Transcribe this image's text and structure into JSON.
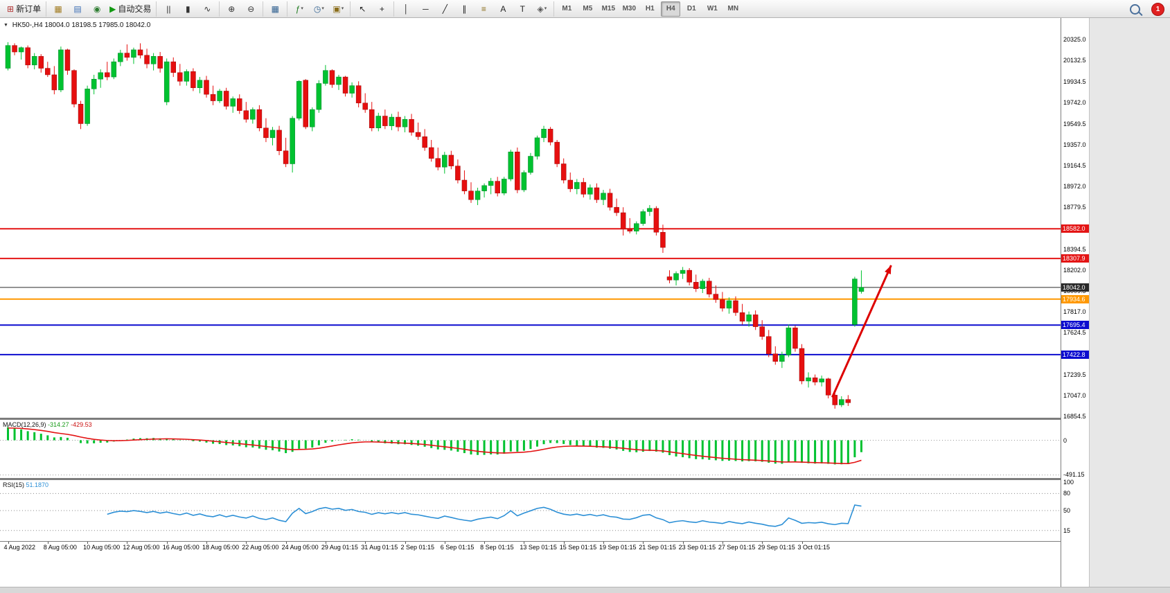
{
  "app": {
    "notification_count": "1",
    "symbol_dropdown_glyph": "▼"
  },
  "toolbar": {
    "groups": [
      [
        {
          "name": "new-order-button",
          "glyph": "⊞",
          "color": "#b03030",
          "label": "新订单"
        }
      ],
      [
        {
          "name": "new-chart-button",
          "glyph": "▦",
          "color": "#a07a1e"
        },
        {
          "name": "profiles-button",
          "glyph": "▤",
          "color": "#3c6eb4"
        },
        {
          "name": "data-window-button",
          "glyph": "◉",
          "color": "#2e7d32"
        },
        {
          "name": "auto-trading-button",
          "glyph": "▶",
          "color": "#119911",
          "label": "自动交易"
        }
      ],
      [
        {
          "name": "bar-chart-button",
          "glyph": "||",
          "color": "#333"
        },
        {
          "name": "candlestick-chart-button",
          "glyph": "▮",
          "color": "#333"
        },
        {
          "name": "line-chart-button",
          "glyph": "∿",
          "color": "#333"
        }
      ],
      [
        {
          "name": "zoom-in-button",
          "glyph": "⊕",
          "color": "#333"
        },
        {
          "name": "zoom-out-button",
          "glyph": "⊖",
          "color": "#333"
        }
      ],
      [
        {
          "name": "tile-windows-button",
          "glyph": "▦",
          "color": "#2e5f8f"
        }
      ],
      [
        {
          "name": "indicators-button",
          "glyph": "ƒ",
          "color": "#1d7a1d",
          "caret": true
        },
        {
          "name": "periods-button",
          "glyph": "◷",
          "color": "#2e5f8f",
          "caret": true
        },
        {
          "name": "templates-button",
          "glyph": "▣",
          "color": "#8a6d1a",
          "caret": true
        }
      ],
      [
        {
          "name": "cursor-button",
          "glyph": "↖",
          "color": "#222"
        },
        {
          "name": "crosshair-button",
          "glyph": "+",
          "color": "#222"
        }
      ],
      [
        {
          "name": "vertical-line-button",
          "glyph": "│",
          "color": "#222"
        },
        {
          "name": "horizontal-line-button",
          "glyph": "─",
          "color": "#222"
        },
        {
          "name": "trendline-button",
          "glyph": "╱",
          "color": "#222"
        },
        {
          "name": "equidistant-channel-button",
          "glyph": "∥",
          "color": "#222"
        },
        {
          "name": "fibonacci-button",
          "glyph": "≡",
          "color": "#8a6d1a"
        },
        {
          "name": "text-button",
          "glyph": "A",
          "color": "#222"
        },
        {
          "name": "text-label-button",
          "glyph": "T",
          "color": "#222"
        },
        {
          "name": "shapes-button",
          "glyph": "◈",
          "color": "#555",
          "caret": true
        }
      ],
      [
        {
          "name": "tf-m1-button",
          "label": "M1",
          "tf": true
        },
        {
          "name": "tf-m5-button",
          "label": "M5",
          "tf": true
        },
        {
          "name": "tf-m15-button",
          "label": "M15",
          "tf": true
        },
        {
          "name": "tf-m30-button",
          "label": "M30",
          "tf": true
        },
        {
          "name": "tf-h1-button",
          "label": "H1",
          "tf": true
        },
        {
          "name": "tf-h4-button",
          "label": "H4",
          "tf": true,
          "active": true
        },
        {
          "name": "tf-d1-button",
          "label": "D1",
          "tf": true
        },
        {
          "name": "tf-w1-button",
          "label": "W1",
          "tf": true
        },
        {
          "name": "tf-mn-button",
          "label": "MN",
          "tf": true
        }
      ]
    ]
  },
  "chart_data": {
    "type": "candlestick",
    "symbol": "HK50-",
    "timeframe": "H4",
    "title": "HK50-,H4 18004.0 18198.5 17985.0 18042.0",
    "ohlc_current": {
      "open": "18004.0",
      "high": "18198.5",
      "low": "17985.0",
      "close": "18042.0"
    },
    "up_color": "#00c230",
    "down_color": "#e60f0f",
    "price_axis_range": [
      16854.5,
      20325.0
    ],
    "price_ticks": [
      "20325.0",
      "20132.5",
      "19934.5",
      "19742.0",
      "19549.5",
      "19357.0",
      "19164.5",
      "18972.0",
      "18779.5",
      "18587.0",
      "18394.5",
      "18202.0",
      "18009.5",
      "17817.0",
      "17624.5",
      "17432.0",
      "17239.5",
      "17047.0",
      "16854.5"
    ],
    "time_labels": [
      "4 Aug 2022",
      "8 Aug 05:00",
      "10 Aug 05:00",
      "12 Aug 05:00",
      "16 Aug 05:00",
      "18 Aug 05:00",
      "22 Aug 05:00",
      "24 Aug 05:00",
      "29 Aug 01:15",
      "31 Aug 01:15",
      "2 Sep 01:15",
      "6 Sep 01:15",
      "8 Sep 01:15",
      "13 Sep 01:15",
      "15 Sep 01:15",
      "19 Sep 01:15",
      "21 Sep 01:15",
      "23 Sep 01:15",
      "27 Sep 01:15",
      "29 Sep 01:15",
      "3 Oct 01:15"
    ],
    "levels": [
      {
        "label": "18582.0",
        "price": 18582.0,
        "color": "#e41515",
        "width": 2
      },
      {
        "label": "18307.9",
        "price": 18307.9,
        "color": "#e41515",
        "width": 2
      },
      {
        "label": "18042.0",
        "price": 18042.0,
        "color": "#2a2a2a",
        "width": 1
      },
      {
        "label": "17934.6",
        "price": 17934.6,
        "color": "#ff9800",
        "width": 2
      },
      {
        "label": "17695.4",
        "price": 17695.4,
        "color": "#0b0bcf",
        "width": 2
      },
      {
        "label": "17422.8",
        "price": 17422.8,
        "color": "#0b0bcf",
        "width": 2
      }
    ],
    "trend_arrow": {
      "color": "#dd0000",
      "width": 3,
      "from": {
        "index": 124.6,
        "price": 17030
      },
      "to": {
        "index": 133.5,
        "price": 18245
      }
    },
    "candles": [
      [
        20060,
        20300,
        20040,
        20270
      ],
      [
        20270,
        20290,
        20180,
        20210
      ],
      [
        20210,
        20260,
        20140,
        20250
      ],
      [
        20250,
        20270,
        20060,
        20090
      ],
      [
        20090,
        20200,
        20050,
        20170
      ],
      [
        20170,
        20190,
        20020,
        20060
      ],
      [
        20060,
        20120,
        19980,
        20000
      ],
      [
        20000,
        20080,
        19820,
        19860
      ],
      [
        19860,
        20260,
        19840,
        20230
      ],
      [
        20230,
        20240,
        20000,
        20040
      ],
      [
        20040,
        20050,
        19700,
        19730
      ],
      [
        19730,
        19760,
        19500,
        19550
      ],
      [
        19550,
        19900,
        19530,
        19870
      ],
      [
        19870,
        20000,
        19820,
        19960
      ],
      [
        19960,
        20050,
        19880,
        20020
      ],
      [
        20020,
        20120,
        19950,
        19980
      ],
      [
        19980,
        20150,
        19960,
        20120
      ],
      [
        20120,
        20230,
        20080,
        20200
      ],
      [
        20200,
        20280,
        20130,
        20160
      ],
      [
        20160,
        20250,
        20100,
        20230
      ],
      [
        20230,
        20290,
        20150,
        20180
      ],
      [
        20180,
        20240,
        20060,
        20100
      ],
      [
        20100,
        20200,
        20040,
        20170
      ],
      [
        20170,
        20210,
        20020,
        20060
      ],
      [
        19750,
        20150,
        19720,
        20120
      ],
      [
        20120,
        20160,
        19980,
        20020
      ],
      [
        20020,
        20100,
        19900,
        19940
      ],
      [
        19940,
        20050,
        19900,
        20030
      ],
      [
        20030,
        20060,
        19850,
        19880
      ],
      [
        19880,
        19980,
        19830,
        19950
      ],
      [
        19950,
        19990,
        19790,
        19820
      ],
      [
        19820,
        19900,
        19720,
        19760
      ],
      [
        19760,
        19870,
        19740,
        19850
      ],
      [
        19850,
        19880,
        19680,
        19710
      ],
      [
        19710,
        19800,
        19650,
        19780
      ],
      [
        19780,
        19820,
        19640,
        19670
      ],
      [
        19670,
        19750,
        19560,
        19590
      ],
      [
        19590,
        19700,
        19550,
        19680
      ],
      [
        19680,
        19720,
        19480,
        19510
      ],
      [
        19510,
        19600,
        19380,
        19420
      ],
      [
        19420,
        19520,
        19350,
        19490
      ],
      [
        19490,
        19530,
        19260,
        19300
      ],
      [
        19300,
        19420,
        19150,
        19180
      ],
      [
        19180,
        19620,
        19100,
        19600
      ],
      [
        19600,
        19950,
        19580,
        19940
      ],
      [
        19950,
        19960,
        19500,
        19520
      ],
      [
        19520,
        19700,
        19480,
        19680
      ],
      [
        19680,
        19950,
        19650,
        19920
      ],
      [
        19920,
        20090,
        19900,
        20040
      ],
      [
        20040,
        20050,
        19880,
        19910
      ],
      [
        19910,
        20000,
        19860,
        19980
      ],
      [
        19980,
        19990,
        19800,
        19830
      ],
      [
        19830,
        19930,
        19790,
        19900
      ],
      [
        19900,
        19940,
        19700,
        19740
      ],
      [
        19740,
        19830,
        19650,
        19680
      ],
      [
        19680,
        19750,
        19480,
        19510
      ],
      [
        19510,
        19650,
        19480,
        19620
      ],
      [
        19620,
        19680,
        19500,
        19530
      ],
      [
        19530,
        19640,
        19490,
        19610
      ],
      [
        19610,
        19660,
        19480,
        19520
      ],
      [
        19520,
        19620,
        19470,
        19590
      ],
      [
        19590,
        19640,
        19440,
        19470
      ],
      [
        19470,
        19560,
        19400,
        19430
      ],
      [
        19430,
        19500,
        19300,
        19330
      ],
      [
        19330,
        19400,
        19200,
        19230
      ],
      [
        19230,
        19330,
        19120,
        19150
      ],
      [
        19150,
        19290,
        19090,
        19260
      ],
      [
        19260,
        19300,
        19130,
        19160
      ],
      [
        19160,
        19220,
        19000,
        19030
      ],
      [
        19030,
        19120,
        18900,
        18930
      ],
      [
        18930,
        19010,
        18820,
        18850
      ],
      [
        18850,
        18960,
        18800,
        18930
      ],
      [
        18930,
        19000,
        18870,
        18980
      ],
      [
        18980,
        19050,
        18900,
        19020
      ],
      [
        19020,
        19060,
        18880,
        18910
      ],
      [
        18910,
        19060,
        18890,
        19040
      ],
      [
        19040,
        19310,
        19020,
        19290
      ],
      [
        19290,
        19330,
        18910,
        18940
      ],
      [
        18940,
        19120,
        18920,
        19100
      ],
      [
        19100,
        19280,
        19080,
        19250
      ],
      [
        19250,
        19440,
        19220,
        19420
      ],
      [
        19420,
        19530,
        19380,
        19500
      ],
      [
        19500,
        19520,
        19350,
        19380
      ],
      [
        19380,
        19400,
        19150,
        19180
      ],
      [
        19180,
        19230,
        19000,
        19030
      ],
      [
        19030,
        19100,
        18920,
        18950
      ],
      [
        18950,
        19040,
        18900,
        19010
      ],
      [
        19010,
        19050,
        18870,
        18900
      ],
      [
        18900,
        18990,
        18850,
        18960
      ],
      [
        18960,
        19000,
        18820,
        18850
      ],
      [
        18850,
        18940,
        18800,
        18910
      ],
      [
        18910,
        18950,
        18750,
        18780
      ],
      [
        18780,
        18860,
        18700,
        18730
      ],
      [
        18730,
        18780,
        18520,
        18580
      ],
      [
        18580,
        18680,
        18540,
        18560
      ],
      [
        18560,
        18650,
        18530,
        18630
      ],
      [
        18630,
        18760,
        18610,
        18740
      ],
      [
        18740,
        18800,
        18700,
        18770
      ],
      [
        18770,
        18790,
        18520,
        18550
      ],
      [
        18550,
        18620,
        18360,
        18410
      ],
      [
        18140,
        18200,
        18080,
        18110
      ],
      [
        18110,
        18190,
        18060,
        18170
      ],
      [
        18170,
        18230,
        18120,
        18200
      ],
      [
        18200,
        18220,
        18060,
        18090
      ],
      [
        18090,
        18160,
        18000,
        18030
      ],
      [
        18030,
        18120,
        17990,
        18100
      ],
      [
        18100,
        18130,
        17950,
        17980
      ],
      [
        17980,
        18060,
        17900,
        17930
      ],
      [
        17930,
        18000,
        17820,
        17850
      ],
      [
        17850,
        17950,
        17800,
        17920
      ],
      [
        17920,
        17960,
        17780,
        17810
      ],
      [
        17810,
        17890,
        17700,
        17730
      ],
      [
        17730,
        17820,
        17680,
        17790
      ],
      [
        17790,
        17830,
        17650,
        17680
      ],
      [
        17680,
        17740,
        17560,
        17590
      ],
      [
        17590,
        17650,
        17400,
        17430
      ],
      [
        17430,
        17500,
        17330,
        17360
      ],
      [
        17360,
        17450,
        17300,
        17420
      ],
      [
        17420,
        17700,
        17400,
        17670
      ],
      [
        17670,
        17690,
        17450,
        17480
      ],
      [
        17480,
        17520,
        17150,
        17180
      ],
      [
        17180,
        17260,
        17120,
        17210
      ],
      [
        17210,
        17240,
        17140,
        17170
      ],
      [
        17170,
        17230,
        17130,
        17200
      ],
      [
        17200,
        17210,
        17020,
        17050
      ],
      [
        17050,
        17090,
        16925,
        16960
      ],
      [
        16960,
        17040,
        16940,
        17010
      ],
      [
        17010,
        17050,
        16950,
        16980
      ],
      [
        17700,
        18140,
        17680,
        18120
      ],
      [
        18004,
        18198.5,
        17985,
        18042
      ]
    ],
    "indicators": {
      "macd": {
        "label": "MACD(12,26,9)",
        "value_main": "-314.27",
        "value_signal": "-429.53",
        "axis_zero_label": "0",
        "axis_min_label": "-491.15",
        "histogram_color": "#00c230",
        "signal_color": "#e31212",
        "params": {
          "fast": 12,
          "slow": 26,
          "signal": 9
        }
      },
      "rsi": {
        "label": "RSI(15)",
        "value": "51.1870",
        "line_color": "#2b8fd6",
        "levels": [
          "100",
          "80",
          "50",
          "15"
        ],
        "level_values": [
          100,
          80,
          50,
          15
        ],
        "level_lines": [
          80,
          50,
          15
        ],
        "period": 15
      }
    }
  }
}
